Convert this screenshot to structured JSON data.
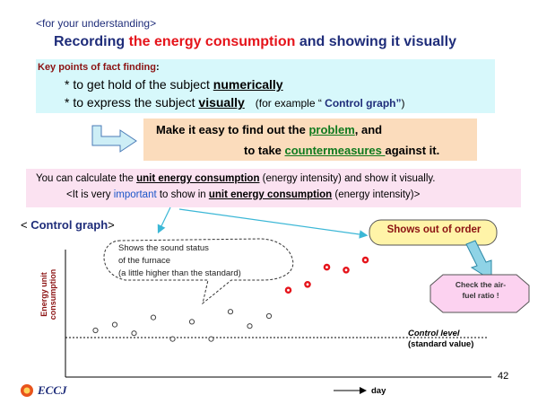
{
  "subtitle": "<for your understanding>",
  "title": {
    "part1": "Recording ",
    "part2": "the ",
    "part3": "energy consumption",
    "part4": " and showing it visually"
  },
  "key_points": {
    "heading": "Key points of fact finding",
    "heading_colon": ":",
    "line1_prefix": "* to get hold of the subject ",
    "line1_emph": "numerically",
    "line2_prefix": "* to express the subject ",
    "line2_emph": "visually",
    "line2_note_open": "(for example “ ",
    "line2_note_emph": "Control graph”",
    "line2_note_close": ")"
  },
  "make_easy": {
    "line1_prefix": "Make it easy to find out the ",
    "line1_emph": "problem",
    "line1_suffix": ", and",
    "line2_prefix": "to take ",
    "line2_emph": "countermeasures ",
    "line2_suffix": "against it."
  },
  "calc": {
    "line1_prefix": "You can calculate the ",
    "line1_emph": "unit energy consumption",
    "line1_suffix": " (energy intensity) and show it visually.",
    "line2_prefix": "<It is very ",
    "line2_blue": "important",
    "line2_mid": " to show in ",
    "line2_emph": "unit energy consumption",
    "line2_suffix": " (energy intensity)>"
  },
  "control_graph_label": {
    "open": "< ",
    "name": "Control graph",
    "close": ">"
  },
  "bubble": {
    "line1": "Shows the sound status",
    "line2": "of the furnace",
    "line3": "(a little higher than the standard)"
  },
  "out_of_order": "Shows out of order",
  "check_air": {
    "line1": "Check the air-",
    "line2": "fuel ratio !"
  },
  "axis": {
    "y_line1": "Energy unit",
    "y_line2": "consumption",
    "x": "day"
  },
  "control_level": {
    "label": "Control level",
    "sub": "(standard value)",
    "value": 0
  },
  "page_number": "42",
  "logo_text": "ECCJ",
  "colors": {
    "navy": "#1f2d7a",
    "red": "#e5141b",
    "green": "#0f7a1e",
    "normal_point": "#444444",
    "abnormal_point": "#e5141b"
  },
  "chart_data": {
    "type": "scatter",
    "x_range": [
      0,
      20
    ],
    "y_range": [
      -10,
      60
    ],
    "control_level": 0,
    "series": [
      {
        "points": [
          [
            1,
            5
          ],
          [
            2,
            9
          ],
          [
            3,
            3
          ],
          [
            4,
            14
          ],
          [
            5,
            -1
          ],
          [
            6,
            11
          ],
          [
            7,
            -1
          ],
          [
            8,
            18
          ],
          [
            9,
            8
          ],
          [
            10,
            15
          ]
        ]
      },
      {
        "points": [
          [
            11,
            33
          ],
          [
            12,
            37
          ],
          [
            13,
            49
          ],
          [
            14,
            47
          ],
          [
            15,
            54
          ]
        ]
      }
    ]
  }
}
